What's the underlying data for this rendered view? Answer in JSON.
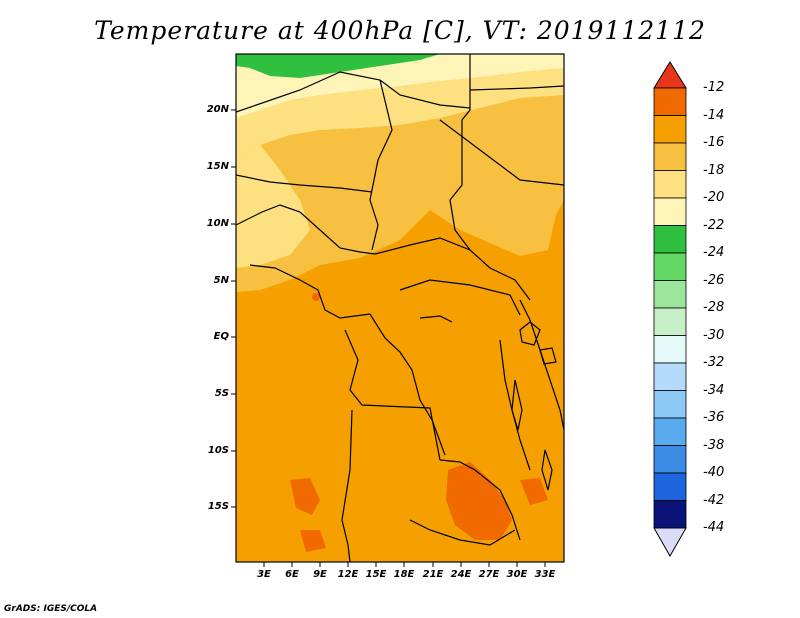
{
  "title": "Temperature at 400hPa [C], VT: 2019112112",
  "footer": "GrADS: IGES/COLA",
  "map": {
    "region": "Central Africa",
    "lat_labels": [
      "20N",
      "15N",
      "10N",
      "5N",
      "EQ",
      "5S",
      "10S",
      "15S"
    ],
    "lon_labels": [
      "3E",
      "6E",
      "9E",
      "12E",
      "15E",
      "18E",
      "21E",
      "24E",
      "27E",
      "30E",
      "33E"
    ]
  },
  "colorbar": {
    "labels": [
      "-12",
      "-14",
      "-16",
      "-18",
      "-20",
      "-22",
      "-24",
      "-26",
      "-28",
      "-30",
      "-32",
      "-34",
      "-36",
      "-38",
      "-40",
      "-42",
      "-44"
    ],
    "colors": [
      "#e8361a",
      "#f06a00",
      "#f5a000",
      "#f8c040",
      "#fde080",
      "#fff4b8",
      "#30c040",
      "#64d864",
      "#9ce69c",
      "#c8f0c8",
      "#e6fafa",
      "#b4dcfa",
      "#8cc8f5",
      "#5aaaf0",
      "#3c8ce6",
      "#1e64dc",
      "#1446be",
      "#0a1478",
      "#dcdcf8"
    ]
  }
}
